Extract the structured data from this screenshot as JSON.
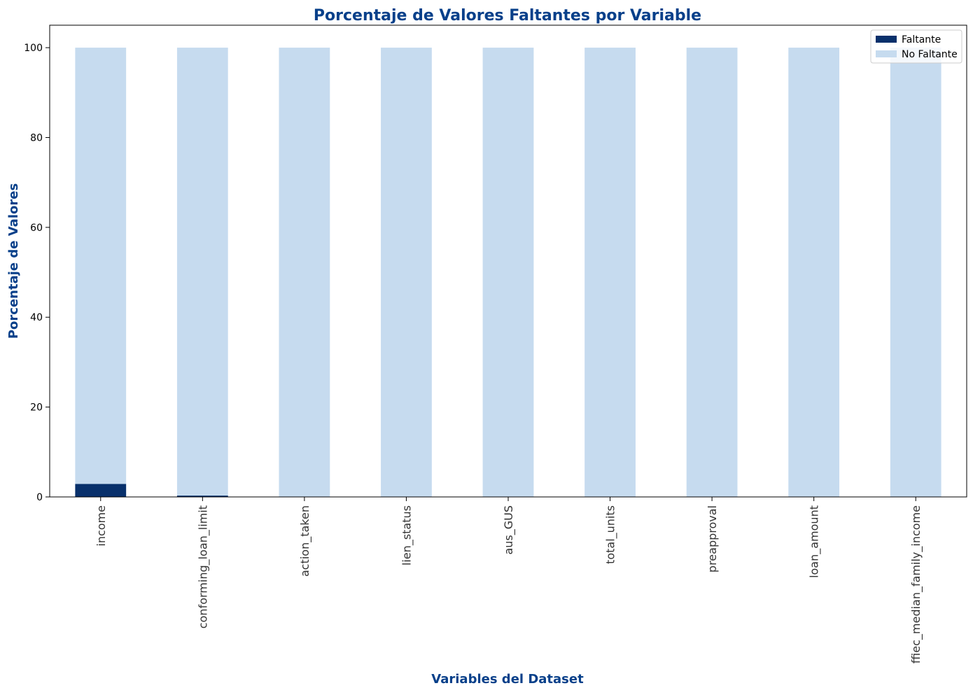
{
  "chart_data": {
    "type": "bar",
    "stacked": true,
    "title": "Porcentaje de Valores Faltantes por Variable",
    "xlabel": "Variables del Dataset",
    "ylabel": "Porcentaje de Valores",
    "categories": [
      "income",
      "conforming_loan_limit",
      "action_taken",
      "lien_status",
      "aus_GUS",
      "total_units",
      "preapproval",
      "loan_amount",
      "ffiec_median_family_income"
    ],
    "series": [
      {
        "name": "Faltante",
        "color": "#08306b",
        "values": [
          2.9,
          0.3,
          0,
          0,
          0,
          0,
          0,
          0,
          0
        ]
      },
      {
        "name": "No Faltante",
        "color": "#c6dbef",
        "values": [
          97.1,
          99.7,
          100,
          100,
          100,
          100,
          100,
          100,
          100
        ]
      }
    ],
    "ylim": [
      0,
      105
    ],
    "yticks": [
      "0",
      "20",
      "40",
      "60",
      "80",
      "100"
    ],
    "grid": false,
    "legend_position": "top-right",
    "title_color": "#08408a",
    "label_color": "#08408a"
  }
}
